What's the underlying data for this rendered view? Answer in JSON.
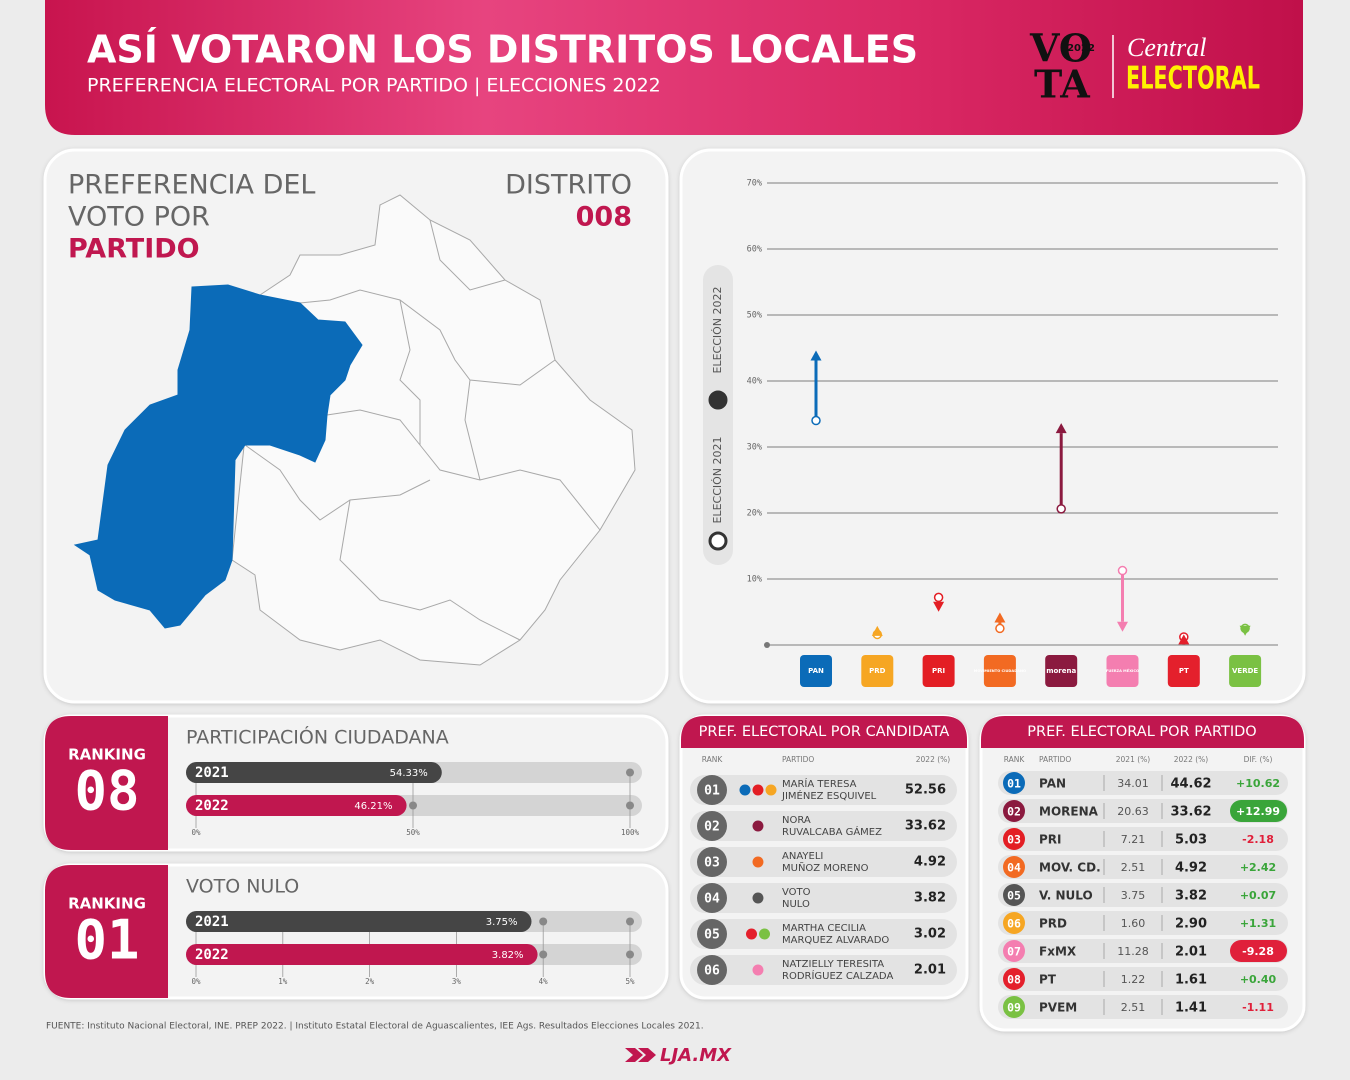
{
  "header": {
    "title": "ASÍ VOTARON LOS DISTRITOS LOCALES",
    "subtitle": "PREFERENCIA ELECTORAL POR PARTIDO | ELECCIONES 2022",
    "logo": {
      "vota_top": "VO",
      "vota_bottom": "TA",
      "year": "2022",
      "central": "Central",
      "electoral": "ELECTORAL"
    }
  },
  "map_panel": {
    "title_lines": [
      "PREFERENCIA DEL",
      "VOTO POR"
    ],
    "title_highlight": "PARTIDO",
    "district_label": "DISTRITO",
    "district": "008"
  },
  "chart_data": [
    {
      "type": "arrow",
      "categories": [
        "PAN",
        "PRD",
        "PRI",
        "MOVIMIENTO CIUDADANO",
        "morena",
        "FUERZA MÉXICO",
        "PT",
        "VERDE"
      ],
      "colors": [
        "#0b6bb8",
        "#f6a623",
        "#e31e24",
        "#f26a22",
        "#8b1a3f",
        "#f47eb0",
        "#e4202c",
        "#7ac143"
      ],
      "series": [
        {
          "name": "ELECCIÓN 2021",
          "color": "#333333",
          "values": [
            34.01,
            1.6,
            7.21,
            2.51,
            20.63,
            11.28,
            1.22,
            2.51
          ]
        },
        {
          "name": "ELECCIÓN 2022",
          "color": "#333333",
          "values": [
            44.62,
            2.9,
            5.03,
            4.92,
            33.62,
            2.01,
            1.61,
            1.41
          ]
        }
      ],
      "ylim": [
        0,
        70
      ],
      "yticks": [
        {
          "value": 10,
          "label": "10%"
        },
        {
          "value": 20,
          "label": "20%"
        },
        {
          "value": 30,
          "label": "30%"
        },
        {
          "value": 40,
          "label": "40%"
        },
        {
          "value": 50,
          "label": "50%"
        },
        {
          "value": 60,
          "label": "60%"
        },
        {
          "value": 70,
          "label": "70%"
        }
      ],
      "grid": true
    },
    {
      "type": "bar",
      "title": "PARTICIPACIÓN CIUDADANA",
      "ranking_label": "RANKING",
      "rank": "08",
      "categories": [
        "2021",
        "2022"
      ],
      "values": [
        54.33,
        46.21
      ],
      "value_labels": [
        "54.33%",
        "46.21%"
      ],
      "colors": [
        "#454545",
        "#c0174f"
      ],
      "xlim": [
        0,
        100
      ],
      "xticks": [
        {
          "value": 0,
          "label": "0%"
        },
        {
          "value": 50,
          "label": "50%"
        },
        {
          "value": 100,
          "label": "100%"
        }
      ]
    },
    {
      "type": "bar",
      "title": "VOTO NULO",
      "ranking_label": "RANKING",
      "rank": "01",
      "categories": [
        "2021",
        "2022"
      ],
      "values": [
        3.75,
        3.82
      ],
      "value_labels": [
        "3.75%",
        "3.82%"
      ],
      "colors": [
        "#454545",
        "#c0174f"
      ],
      "xlim": [
        0,
        5
      ],
      "xticks": [
        {
          "value": 0,
          "label": "0%"
        },
        {
          "value": 1,
          "label": "1%"
        },
        {
          "value": 2,
          "label": "2%"
        },
        {
          "value": 3,
          "label": "3%"
        },
        {
          "value": 4,
          "label": "4%"
        },
        {
          "value": 5,
          "label": "5%"
        }
      ]
    }
  ],
  "candidate_table": {
    "title": "PREF. ELECTORAL POR CANDIDATA",
    "columns": [
      "RANK",
      "PARTIDO",
      "2022 (%)"
    ],
    "rows": [
      {
        "rank": "01",
        "party_colors": [
          "#0b6bb8",
          "#e31e24",
          "#f6a623"
        ],
        "name": [
          "MARÍA TERESA",
          "JIMÉNEZ ESQUIVEL"
        ],
        "value": "52.56"
      },
      {
        "rank": "02",
        "party_colors": [
          "#8b1a3f"
        ],
        "name": [
          "NORA",
          "RUVALCABA GÁMEZ"
        ],
        "value": "33.62"
      },
      {
        "rank": "03",
        "party_colors": [
          "#f26a22"
        ],
        "name": [
          "ANAYELI",
          "MUÑOZ MORENO"
        ],
        "value": "4.92"
      },
      {
        "rank": "04",
        "party_colors": [
          "#555555"
        ],
        "name": [
          "VOTO",
          "NULO"
        ],
        "value": "3.82"
      },
      {
        "rank": "05",
        "party_colors": [
          "#e4202c",
          "#7ac143"
        ],
        "name": [
          "MARTHA CECILIA",
          "MARQUEZ ALVARADO"
        ],
        "value": "3.02"
      },
      {
        "rank": "06",
        "party_colors": [
          "#f47eb0"
        ],
        "name": [
          "NATZIELLY TERESITA",
          "RODRÍGUEZ CALZADA"
        ],
        "value": "2.01"
      }
    ]
  },
  "party_table": {
    "title": "PREF. ELECTORAL POR PARTIDO",
    "columns": [
      "RANK",
      "PARTIDO",
      "2021 (%)",
      "2022 (%)",
      "DIF. (%)"
    ],
    "rows": [
      {
        "rank": "01",
        "party": "PAN",
        "v2021": "34.01",
        "v2022": "44.62",
        "diff": "+10.62",
        "color": "#0b6bb8"
      },
      {
        "rank": "02",
        "party": "MORENA",
        "v2021": "20.63",
        "v2022": "33.62",
        "diff": "+12.99",
        "color": "#8b1a3f",
        "highlight": true
      },
      {
        "rank": "03",
        "party": "PRI",
        "v2021": "7.21",
        "v2022": "5.03",
        "diff": "-2.18",
        "color": "#e31e24"
      },
      {
        "rank": "04",
        "party": "MOV. CD.",
        "v2021": "2.51",
        "v2022": "4.92",
        "diff": "+2.42",
        "color": "#f26a22"
      },
      {
        "rank": "05",
        "party": "V. NULO",
        "v2021": "3.75",
        "v2022": "3.82",
        "diff": "+0.07",
        "color": "#555555"
      },
      {
        "rank": "06",
        "party": "PRD",
        "v2021": "1.60",
        "v2022": "2.90",
        "diff": "+1.31",
        "color": "#f6a623"
      },
      {
        "rank": "07",
        "party": "FxMX",
        "v2021": "11.28",
        "v2022": "2.01",
        "diff": "-9.28",
        "color": "#f47eb0",
        "highlight": true
      },
      {
        "rank": "08",
        "party": "PT",
        "v2021": "1.22",
        "v2022": "1.61",
        "diff": "+0.40",
        "color": "#e4202c"
      },
      {
        "rank": "09",
        "party": "PVEM",
        "v2021": "2.51",
        "v2022": "1.41",
        "diff": "-1.11",
        "color": "#7ac143"
      }
    ]
  },
  "footer": {
    "source": "FUENTE: Instituto Nacional Electoral, INE. PREP 2022. | Instituto Estatal Electoral de Aguascalientes, IEE Ags. Resultados Elecciones Locales 2021.",
    "logo": "LJA.MX"
  }
}
